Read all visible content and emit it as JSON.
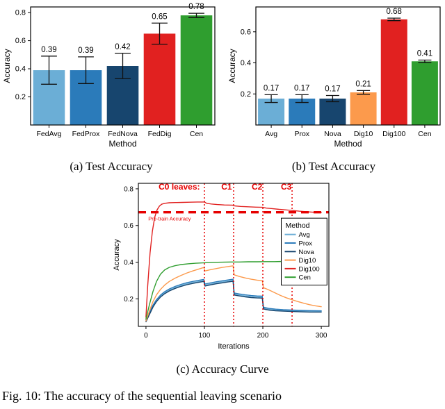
{
  "page": {
    "caption_a": "(a) Test Accuracy",
    "caption_b": "(b) Test Accuracy",
    "caption_c": "(c) Accuracy Curve",
    "figure_caption": "Fig. 10: The accuracy of the sequential leaving scenario"
  },
  "colors": {
    "light_blue": "#6baed6",
    "blue": "#2b7bba",
    "dark_blue": "#17456e",
    "orange": "#fc9a4c",
    "red": "#e12120",
    "green": "#2f9e2f",
    "annotation_red": "#e60000"
  },
  "chart_data": [
    {
      "type": "bar",
      "name": "test-accuracy-a",
      "xlabel": "Method",
      "ylabel": "Accuracy",
      "categories": [
        "FedAvg",
        "FedProx",
        "FedNova",
        "FedDig",
        "Cen"
      ],
      "values": [
        0.39,
        0.39,
        0.42,
        0.65,
        0.78
      ],
      "errors": [
        0.1,
        0.095,
        0.09,
        0.075,
        0.015
      ],
      "value_labels": [
        "0.39",
        "0.39",
        "0.42",
        "0.65",
        "0.78"
      ],
      "bar_colors": [
        "#6baed6",
        "#2b7bba",
        "#17456e",
        "#e12120",
        "#2f9e2f"
      ],
      "yticks": [
        0.2,
        0.4,
        0.6,
        0.8
      ],
      "ylim": [
        0,
        0.84
      ],
      "grid": false,
      "legend": null
    },
    {
      "type": "bar",
      "name": "test-accuracy-b",
      "xlabel": "Method",
      "ylabel": "Accuracy",
      "categories": [
        "Avg",
        "Prox",
        "Nova",
        "Dig10",
        "Dig100",
        "Cen"
      ],
      "values": [
        0.17,
        0.17,
        0.17,
        0.21,
        0.68,
        0.41
      ],
      "errors": [
        0.025,
        0.025,
        0.02,
        0.012,
        0.008,
        0.008
      ],
      "value_labels": [
        "0.17",
        "0.17",
        "0.17",
        "0.21",
        "0.68",
        "0.41"
      ],
      "bar_colors": [
        "#6baed6",
        "#2b7bba",
        "#17456e",
        "#fc9a4c",
        "#e12120",
        "#2f9e2f"
      ],
      "yticks": [
        0.2,
        0.4,
        0.6
      ],
      "ylim": [
        0,
        0.76
      ],
      "grid": false,
      "legend": null
    },
    {
      "type": "line",
      "name": "accuracy-curve",
      "xlabel": "Iterations",
      "ylabel": "Accuracy",
      "xlim": [
        -13,
        313
      ],
      "ylim": [
        0.05,
        0.83
      ],
      "xticks": [
        0,
        100,
        200,
        300
      ],
      "yticks": [
        0.2,
        0.4,
        0.6,
        0.8
      ],
      "grid": false,
      "annotations": {
        "pretrain_y": 0.672,
        "pretrain_label": "Pre-train Accuracy",
        "label_y": 0.795,
        "vlines": [
          {
            "x": 100,
            "label": "C0 leaves:",
            "label_x": 57
          },
          {
            "x": 150,
            "label": "C1",
            "label_x": 138
          },
          {
            "x": 200,
            "label": "C2",
            "label_x": 190
          },
          {
            "x": 250,
            "label": "C3",
            "label_x": 240
          }
        ]
      },
      "legend": {
        "title": "Method",
        "position": "right-middle",
        "entries": [
          {
            "label": "Avg",
            "color": "#6baed6"
          },
          {
            "label": "Prox",
            "color": "#2b7bba"
          },
          {
            "label": "Nova",
            "color": "#17456e"
          },
          {
            "label": "Dig10",
            "color": "#fc9a4c"
          },
          {
            "label": "Dig100",
            "color": "#e12120"
          },
          {
            "label": "Cen",
            "color": "#2f9e2f"
          }
        ]
      },
      "series": [
        {
          "name": "Avg",
          "color": "#6baed6",
          "points": [
            [
              0,
              0.08
            ],
            [
              6,
              0.12
            ],
            [
              12,
              0.16
            ],
            [
              18,
              0.19
            ],
            [
              25,
              0.215
            ],
            [
              32,
              0.233
            ],
            [
              40,
              0.248
            ],
            [
              50,
              0.262
            ],
            [
              60,
              0.273
            ],
            [
              70,
              0.282
            ],
            [
              80,
              0.289
            ],
            [
              90,
              0.295
            ],
            [
              99,
              0.3
            ],
            [
              101,
              0.275
            ],
            [
              110,
              0.281
            ],
            [
              120,
              0.287
            ],
            [
              130,
              0.292
            ],
            [
              140,
              0.297
            ],
            [
              149,
              0.301
            ],
            [
              151,
              0.226
            ],
            [
              160,
              0.221
            ],
            [
              170,
              0.216
            ],
            [
              180,
              0.212
            ],
            [
              190,
              0.21
            ],
            [
              199,
              0.209
            ],
            [
              201,
              0.15
            ],
            [
              210,
              0.143
            ],
            [
              222,
              0.139
            ],
            [
              235,
              0.137
            ],
            [
              250,
              0.135
            ],
            [
              265,
              0.133
            ],
            [
              280,
              0.132
            ],
            [
              300,
              0.131
            ]
          ]
        },
        {
          "name": "Prox",
          "color": "#2b7bba",
          "points": [
            [
              0,
              0.085
            ],
            [
              6,
              0.126
            ],
            [
              12,
              0.166
            ],
            [
              18,
              0.196
            ],
            [
              25,
              0.221
            ],
            [
              32,
              0.239
            ],
            [
              40,
              0.254
            ],
            [
              50,
              0.268
            ],
            [
              60,
              0.279
            ],
            [
              70,
              0.288
            ],
            [
              80,
              0.295
            ],
            [
              90,
              0.301
            ],
            [
              99,
              0.306
            ],
            [
              101,
              0.281
            ],
            [
              110,
              0.287
            ],
            [
              120,
              0.293
            ],
            [
              130,
              0.298
            ],
            [
              140,
              0.303
            ],
            [
              149,
              0.307
            ],
            [
              151,
              0.232
            ],
            [
              160,
              0.227
            ],
            [
              170,
              0.222
            ],
            [
              180,
              0.218
            ],
            [
              190,
              0.216
            ],
            [
              199,
              0.215
            ],
            [
              201,
              0.155
            ],
            [
              210,
              0.148
            ],
            [
              222,
              0.144
            ],
            [
              235,
              0.141
            ],
            [
              250,
              0.139
            ],
            [
              265,
              0.137
            ],
            [
              280,
              0.136
            ],
            [
              300,
              0.135
            ]
          ]
        },
        {
          "name": "Nova",
          "color": "#17456e",
          "points": [
            [
              0,
              0.075
            ],
            [
              6,
              0.115
            ],
            [
              12,
              0.155
            ],
            [
              18,
              0.185
            ],
            [
              25,
              0.21
            ],
            [
              32,
              0.228
            ],
            [
              40,
              0.243
            ],
            [
              50,
              0.257
            ],
            [
              60,
              0.268
            ],
            [
              70,
              0.277
            ],
            [
              80,
              0.284
            ],
            [
              90,
              0.29
            ],
            [
              99,
              0.295
            ],
            [
              101,
              0.27
            ],
            [
              110,
              0.276
            ],
            [
              120,
              0.282
            ],
            [
              130,
              0.287
            ],
            [
              140,
              0.292
            ],
            [
              149,
              0.296
            ],
            [
              151,
              0.221
            ],
            [
              160,
              0.216
            ],
            [
              170,
              0.211
            ],
            [
              180,
              0.207
            ],
            [
              190,
              0.205
            ],
            [
              199,
              0.204
            ],
            [
              201,
              0.145
            ],
            [
              210,
              0.139
            ],
            [
              222,
              0.135
            ],
            [
              235,
              0.133
            ],
            [
              250,
              0.131
            ],
            [
              265,
              0.129
            ],
            [
              280,
              0.128
            ],
            [
              300,
              0.128
            ]
          ]
        },
        {
          "name": "Dig10",
          "color": "#fc9a4c",
          "points": [
            [
              0,
              0.08
            ],
            [
              6,
              0.135
            ],
            [
              12,
              0.185
            ],
            [
              18,
              0.222
            ],
            [
              25,
              0.252
            ],
            [
              32,
              0.275
            ],
            [
              40,
              0.295
            ],
            [
              50,
              0.313
            ],
            [
              60,
              0.328
            ],
            [
              70,
              0.341
            ],
            [
              80,
              0.352
            ],
            [
              90,
              0.362
            ],
            [
              99,
              0.371
            ],
            [
              101,
              0.352
            ],
            [
              110,
              0.359
            ],
            [
              120,
              0.365
            ],
            [
              130,
              0.371
            ],
            [
              140,
              0.376
            ],
            [
              149,
              0.38
            ],
            [
              151,
              0.331
            ],
            [
              160,
              0.322
            ],
            [
              170,
              0.314
            ],
            [
              180,
              0.307
            ],
            [
              190,
              0.302
            ],
            [
              199,
              0.299
            ],
            [
              201,
              0.261
            ],
            [
              210,
              0.249
            ],
            [
              220,
              0.234
            ],
            [
              230,
              0.219
            ],
            [
              240,
              0.206
            ],
            [
              250,
              0.195
            ],
            [
              260,
              0.185
            ],
            [
              270,
              0.176
            ],
            [
              280,
              0.168
            ],
            [
              290,
              0.162
            ],
            [
              300,
              0.157
            ]
          ]
        },
        {
          "name": "Dig100",
          "color": "#e12120",
          "points": [
            [
              0,
              0.1
            ],
            [
              3,
              0.27
            ],
            [
              7,
              0.45
            ],
            [
              11,
              0.57
            ],
            [
              15,
              0.645
            ],
            [
              19,
              0.685
            ],
            [
              23,
              0.706
            ],
            [
              27,
              0.716
            ],
            [
              32,
              0.721
            ],
            [
              40,
              0.724
            ],
            [
              50,
              0.725
            ],
            [
              62,
              0.726
            ],
            [
              75,
              0.727
            ],
            [
              88,
              0.728
            ],
            [
              100,
              0.728
            ],
            [
              104,
              0.721
            ],
            [
              112,
              0.717
            ],
            [
              122,
              0.714
            ],
            [
              134,
              0.712
            ],
            [
              148,
              0.711
            ],
            [
              152,
              0.707
            ],
            [
              162,
              0.704
            ],
            [
              175,
              0.702
            ],
            [
              188,
              0.7
            ],
            [
              200,
              0.699
            ],
            [
              206,
              0.695
            ],
            [
              216,
              0.692
            ],
            [
              228,
              0.688
            ],
            [
              240,
              0.685
            ],
            [
              250,
              0.682
            ],
            [
              262,
              0.678
            ],
            [
              275,
              0.675
            ],
            [
              288,
              0.672
            ],
            [
              300,
              0.67
            ]
          ]
        },
        {
          "name": "Cen",
          "color": "#2f9e2f",
          "points": [
            [
              0,
              0.09
            ],
            [
              6,
              0.17
            ],
            [
              12,
              0.24
            ],
            [
              18,
              0.295
            ],
            [
              25,
              0.335
            ],
            [
              32,
              0.358
            ],
            [
              40,
              0.372
            ],
            [
              50,
              0.381
            ],
            [
              60,
              0.387
            ],
            [
              72,
              0.391
            ],
            [
              85,
              0.394
            ],
            [
              100,
              0.397
            ],
            [
              115,
              0.399
            ],
            [
              130,
              0.4
            ],
            [
              145,
              0.401
            ],
            [
              160,
              0.401
            ],
            [
              175,
              0.402
            ],
            [
              190,
              0.402
            ],
            [
              205,
              0.403
            ],
            [
              220,
              0.403
            ],
            [
              235,
              0.404
            ],
            [
              250,
              0.404
            ],
            [
              265,
              0.405
            ],
            [
              280,
              0.405
            ],
            [
              300,
              0.406
            ]
          ]
        }
      ]
    }
  ]
}
